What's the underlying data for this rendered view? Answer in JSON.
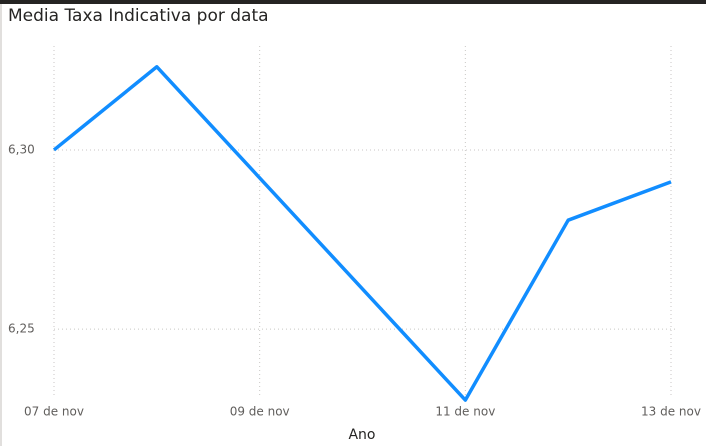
{
  "chart_data": {
    "type": "line",
    "title": "Media Taxa Indicativa por data",
    "x_label": "Ano",
    "x": [
      7,
      8,
      11,
      12,
      13
    ],
    "series": [
      {
        "name": "Media Taxa Indicativa",
        "color": "#118dff",
        "values": [
          6.3,
          6.3232,
          6.2302,
          6.2804,
          6.2911
        ]
      }
    ],
    "xlim": [
      7,
      13
    ],
    "xticks": [
      {
        "value": 7,
        "label": "07 de nov"
      },
      {
        "value": 9,
        "label": "09 de nov"
      },
      {
        "value": 11,
        "label": "11 de nov"
      },
      {
        "value": 13,
        "label": "13 de nov"
      }
    ],
    "ylim": [
      6.228,
      6.329
    ],
    "yticks": [
      {
        "value": 6.25,
        "label": "6,25"
      },
      {
        "value": 6.3,
        "label": "6,30"
      }
    ],
    "grid": true
  }
}
